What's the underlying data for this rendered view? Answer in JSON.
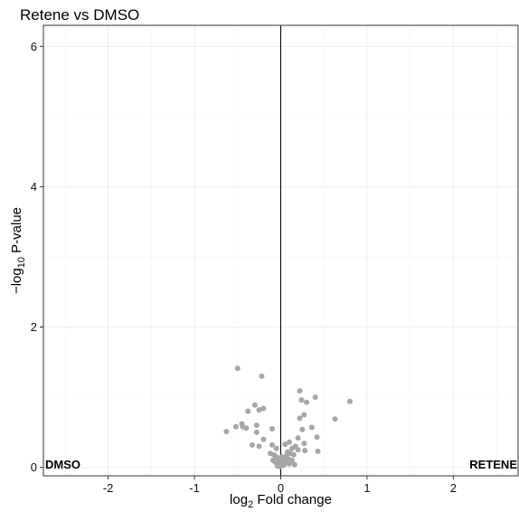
{
  "chart_data": {
    "type": "scatter",
    "title": "Retene vs DMSO",
    "xlabel_prefix": "log",
    "xlabel_sub": "2",
    "xlabel_suffix": " Fold change",
    "ylabel_prefix": "−log",
    "ylabel_sub": "10",
    "ylabel_suffix": " P-value",
    "xlim": [
      -2.75,
      2.75
    ],
    "ylim": [
      -0.12,
      6.3
    ],
    "xticks": [
      -2,
      -1,
      0,
      1,
      2
    ],
    "yticks": [
      0,
      2,
      4,
      6
    ],
    "grid": true,
    "vline_x": 0,
    "left_label": "DMSO",
    "right_label": "RETENE",
    "point_color": "#a6a6a6",
    "points": [
      {
        "x": -0.5,
        "y": 1.41
      },
      {
        "x": -0.22,
        "y": 1.3
      },
      {
        "x": -0.3,
        "y": 0.89
      },
      {
        "x": -0.25,
        "y": 0.82
      },
      {
        "x": -0.2,
        "y": 0.84
      },
      {
        "x": -0.38,
        "y": 0.8
      },
      {
        "x": -0.45,
        "y": 0.62
      },
      {
        "x": -0.44,
        "y": 0.58
      },
      {
        "x": -0.52,
        "y": 0.58
      },
      {
        "x": -0.4,
        "y": 0.56
      },
      {
        "x": -0.63,
        "y": 0.51
      },
      {
        "x": -0.28,
        "y": 0.6
      },
      {
        "x": -0.1,
        "y": 0.55
      },
      {
        "x": -0.28,
        "y": 0.5
      },
      {
        "x": -0.2,
        "y": 0.4
      },
      {
        "x": -0.33,
        "y": 0.32
      },
      {
        "x": -0.25,
        "y": 0.3
      },
      {
        "x": -0.1,
        "y": 0.32
      },
      {
        "x": -0.05,
        "y": 0.27
      },
      {
        "x": -0.12,
        "y": 0.2
      },
      {
        "x": -0.08,
        "y": 0.18
      },
      {
        "x": -0.05,
        "y": 0.15
      },
      {
        "x": -0.09,
        "y": 0.1
      },
      {
        "x": -0.03,
        "y": 0.12
      },
      {
        "x": -0.06,
        "y": 0.07
      },
      {
        "x": -0.02,
        "y": 0.05
      },
      {
        "x": -0.04,
        "y": 0.02
      },
      {
        "x": -0.01,
        "y": 0.01
      },
      {
        "x": 0.0,
        "y": 0.08
      },
      {
        "x": 0.02,
        "y": 0.03
      },
      {
        "x": 0.01,
        "y": 0.15
      },
      {
        "x": 0.03,
        "y": 0.1
      },
      {
        "x": 0.22,
        "y": 1.09
      },
      {
        "x": 0.4,
        "y": 1.0
      },
      {
        "x": 0.3,
        "y": 0.93
      },
      {
        "x": 0.24,
        "y": 0.96
      },
      {
        "x": 0.8,
        "y": 0.94
      },
      {
        "x": 0.27,
        "y": 0.75
      },
      {
        "x": 0.22,
        "y": 0.7
      },
      {
        "x": 0.63,
        "y": 0.69
      },
      {
        "x": 0.36,
        "y": 0.57
      },
      {
        "x": 0.25,
        "y": 0.54
      },
      {
        "x": 0.42,
        "y": 0.43
      },
      {
        "x": 0.2,
        "y": 0.42
      },
      {
        "x": 0.1,
        "y": 0.36
      },
      {
        "x": 0.27,
        "y": 0.34
      },
      {
        "x": 0.05,
        "y": 0.33
      },
      {
        "x": 0.17,
        "y": 0.3
      },
      {
        "x": 0.13,
        "y": 0.27
      },
      {
        "x": 0.2,
        "y": 0.25
      },
      {
        "x": 0.28,
        "y": 0.24
      },
      {
        "x": 0.43,
        "y": 0.23
      },
      {
        "x": 0.08,
        "y": 0.22
      },
      {
        "x": 0.11,
        "y": 0.2
      },
      {
        "x": 0.15,
        "y": 0.18
      },
      {
        "x": 0.06,
        "y": 0.16
      },
      {
        "x": 0.09,
        "y": 0.12
      },
      {
        "x": 0.13,
        "y": 0.1
      },
      {
        "x": 0.05,
        "y": 0.08
      },
      {
        "x": 0.1,
        "y": 0.05
      },
      {
        "x": 0.04,
        "y": 0.04
      },
      {
        "x": 0.16,
        "y": 0.04
      }
    ]
  }
}
